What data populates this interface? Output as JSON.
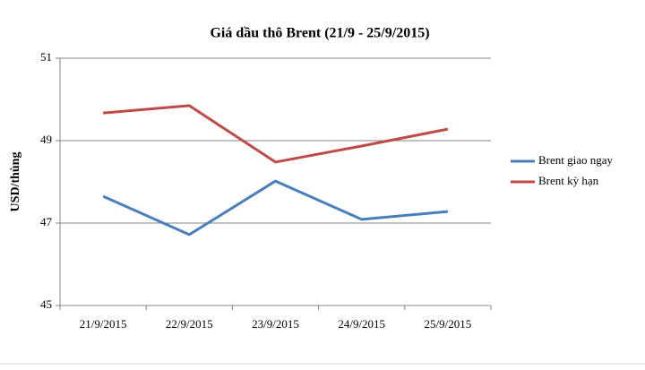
{
  "chart_data": {
    "type": "line",
    "title": "Giá dầu thô Brent (21/9 - 25/9/2015)",
    "y_label": "USD/thùng",
    "categories": [
      "21/9/2015",
      "22/9/2015",
      "23/9/2015",
      "24/9/2015",
      "25/9/2015"
    ],
    "series": [
      {
        "name": "Brent giao ngay",
        "color": "#4a7ebb",
        "values": [
          47.65,
          46.72,
          48.02,
          47.09,
          47.28
        ]
      },
      {
        "name": "Brent kỳ hạn",
        "color": "#be4b48",
        "values": [
          49.67,
          49.85,
          48.48,
          48.87,
          49.28
        ]
      }
    ],
    "ylim": [
      45,
      51
    ],
    "yticks": [
      45,
      47,
      49,
      51
    ],
    "grid": true,
    "legend": "right"
  }
}
